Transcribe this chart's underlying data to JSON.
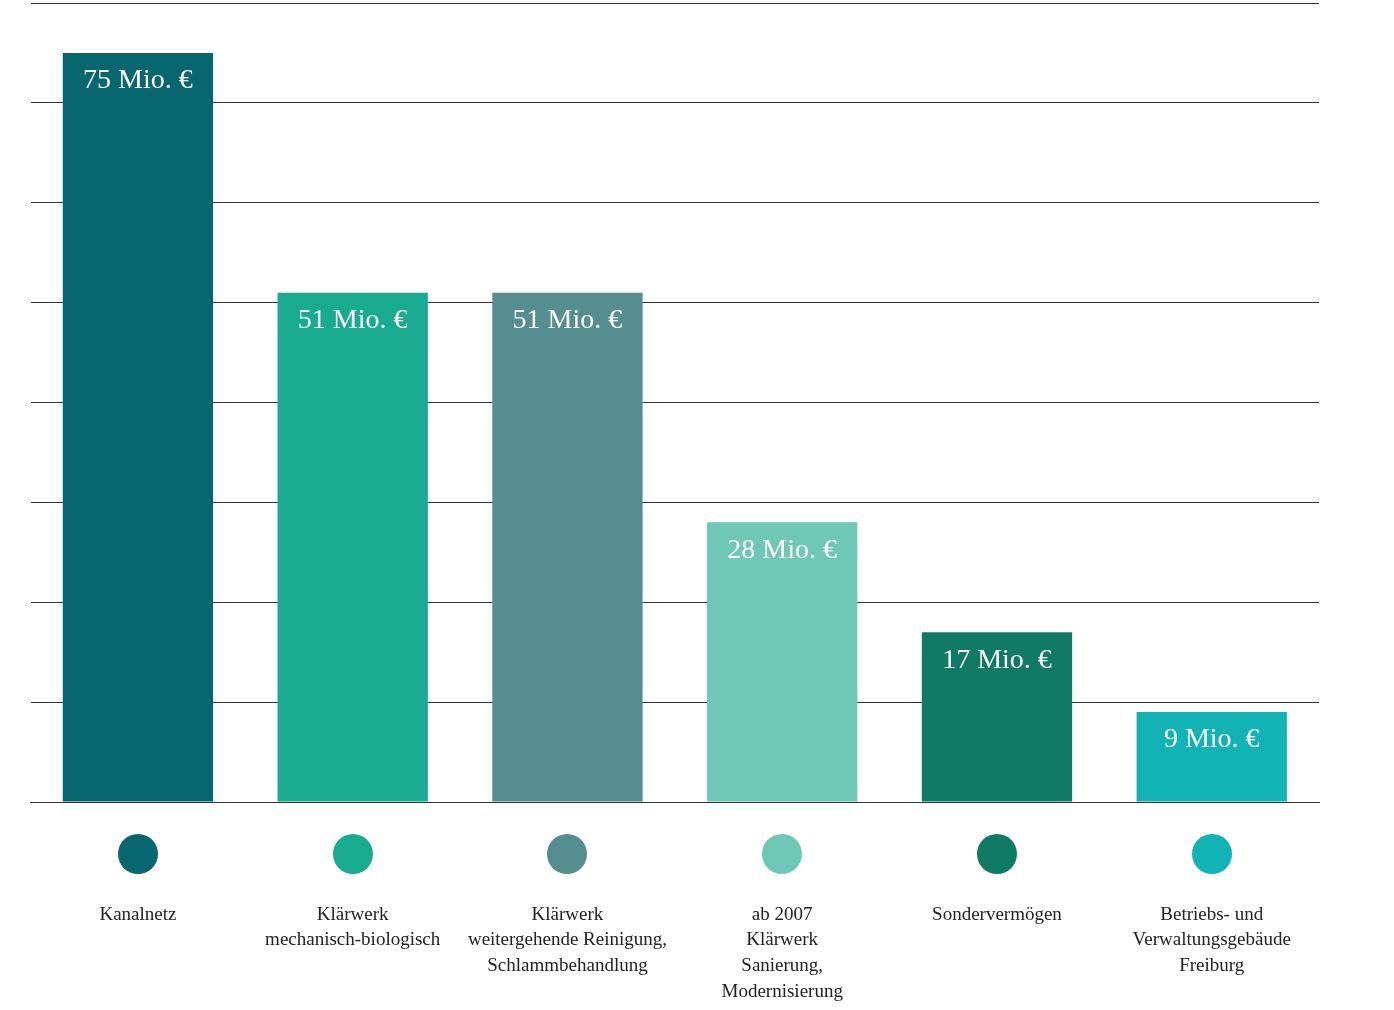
{
  "chart_data": {
    "type": "bar",
    "categories": [
      "Kanalnetz",
      "Klärwerk\nmechanisch-biologisch",
      "Klärwerk\nweitergehende Reinigung,\nSchlammbehandlung",
      "ab 2007\nKlärwerk\nSanierung,\nModernisierung",
      "Sondervermögen",
      "Betriebs- und\nVerwaltungsgebäude\nFreiburg"
    ],
    "values": [
      75,
      51,
      51,
      28,
      17,
      9
    ],
    "colors": [
      "#08666e",
      "#18ab8f",
      "#548e90",
      "#6ec8b5",
      "#107a64",
      "#12b3b4"
    ],
    "value_labels": [
      "75 Mio. €",
      "51 Mio. €",
      "51 Mio. €",
      "28 Mio. €",
      "17 Mio. €",
      "9 Mio. €"
    ],
    "ylim": [
      0,
      80
    ],
    "yticks": [
      {
        "value": 0,
        "label": null
      },
      {
        "value": 10,
        "label": null
      },
      {
        "value": 20,
        "label": null
      },
      {
        "value": 30,
        "label": null
      },
      {
        "value": 40,
        "label": null
      },
      {
        "value": 50,
        "label": null
      },
      {
        "value": 60,
        "label": null
      },
      {
        "value": 70,
        "label": null
      },
      {
        "value": 80,
        "label": null
      }
    ],
    "grid": "y",
    "tick_labels": "x"
  }
}
